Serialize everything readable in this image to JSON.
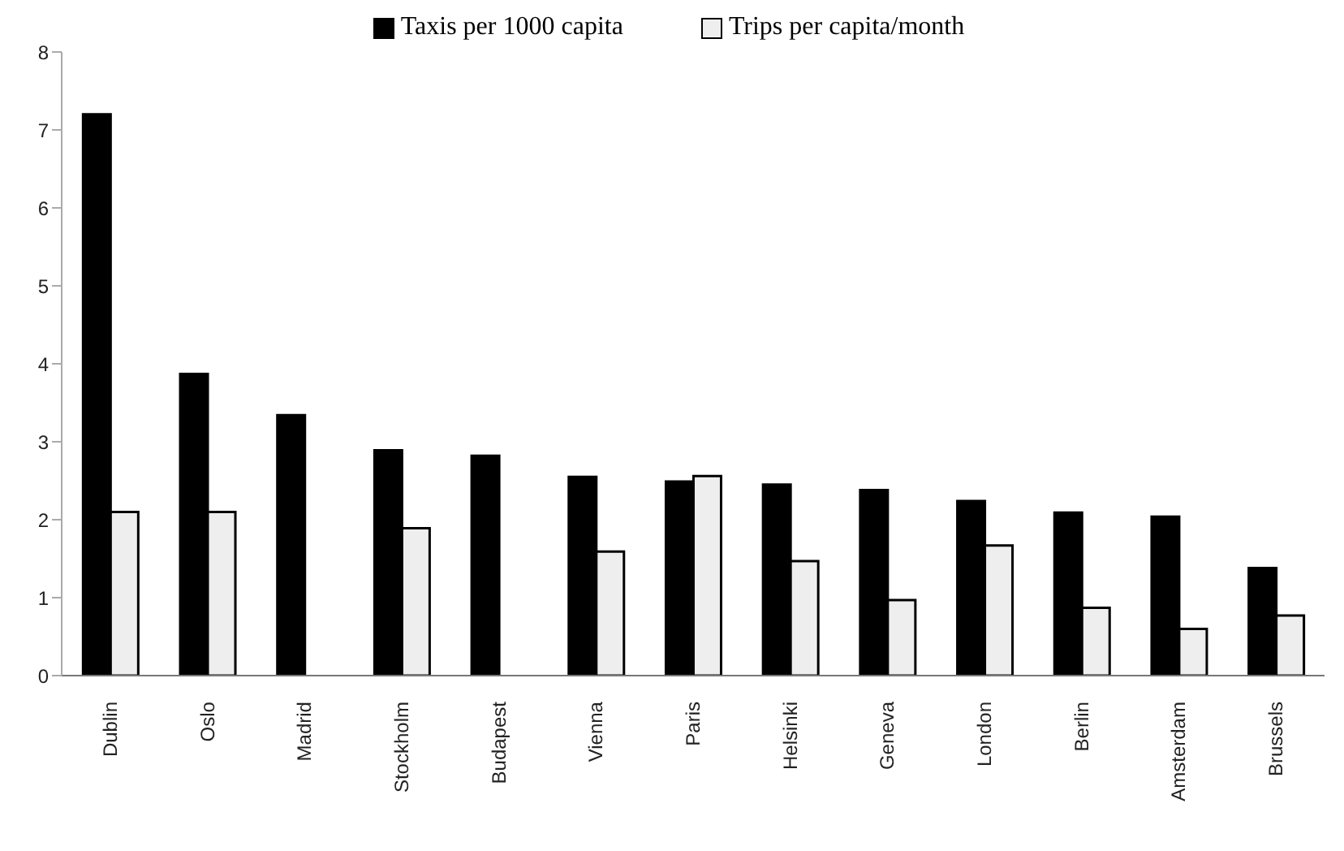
{
  "chart_data": {
    "type": "bar",
    "categories": [
      "Dublin",
      "Oslo",
      "Madrid",
      "Stockholm",
      "Budapest",
      "Vienna",
      "Paris",
      "Helsinki",
      "Geneva",
      "London",
      "Berlin",
      "Amsterdam",
      "Brussels"
    ],
    "series": [
      {
        "name": "Taxis per 1000 capita",
        "color": "#000000",
        "values": [
          7.2,
          3.87,
          3.34,
          2.89,
          2.82,
          2.55,
          2.49,
          2.45,
          2.38,
          2.24,
          2.09,
          2.04,
          1.38
        ]
      },
      {
        "name": "Trips per capita/month",
        "color": "#eeeeee",
        "values": [
          2.1,
          2.1,
          null,
          1.89,
          null,
          1.59,
          2.56,
          1.47,
          0.97,
          1.67,
          0.87,
          0.6,
          0.77
        ]
      }
    ],
    "ylim": [
      0,
      8
    ],
    "yticks": [
      0,
      1,
      2,
      3,
      4,
      5,
      6,
      7,
      8
    ],
    "grid": false,
    "legend": "top"
  }
}
